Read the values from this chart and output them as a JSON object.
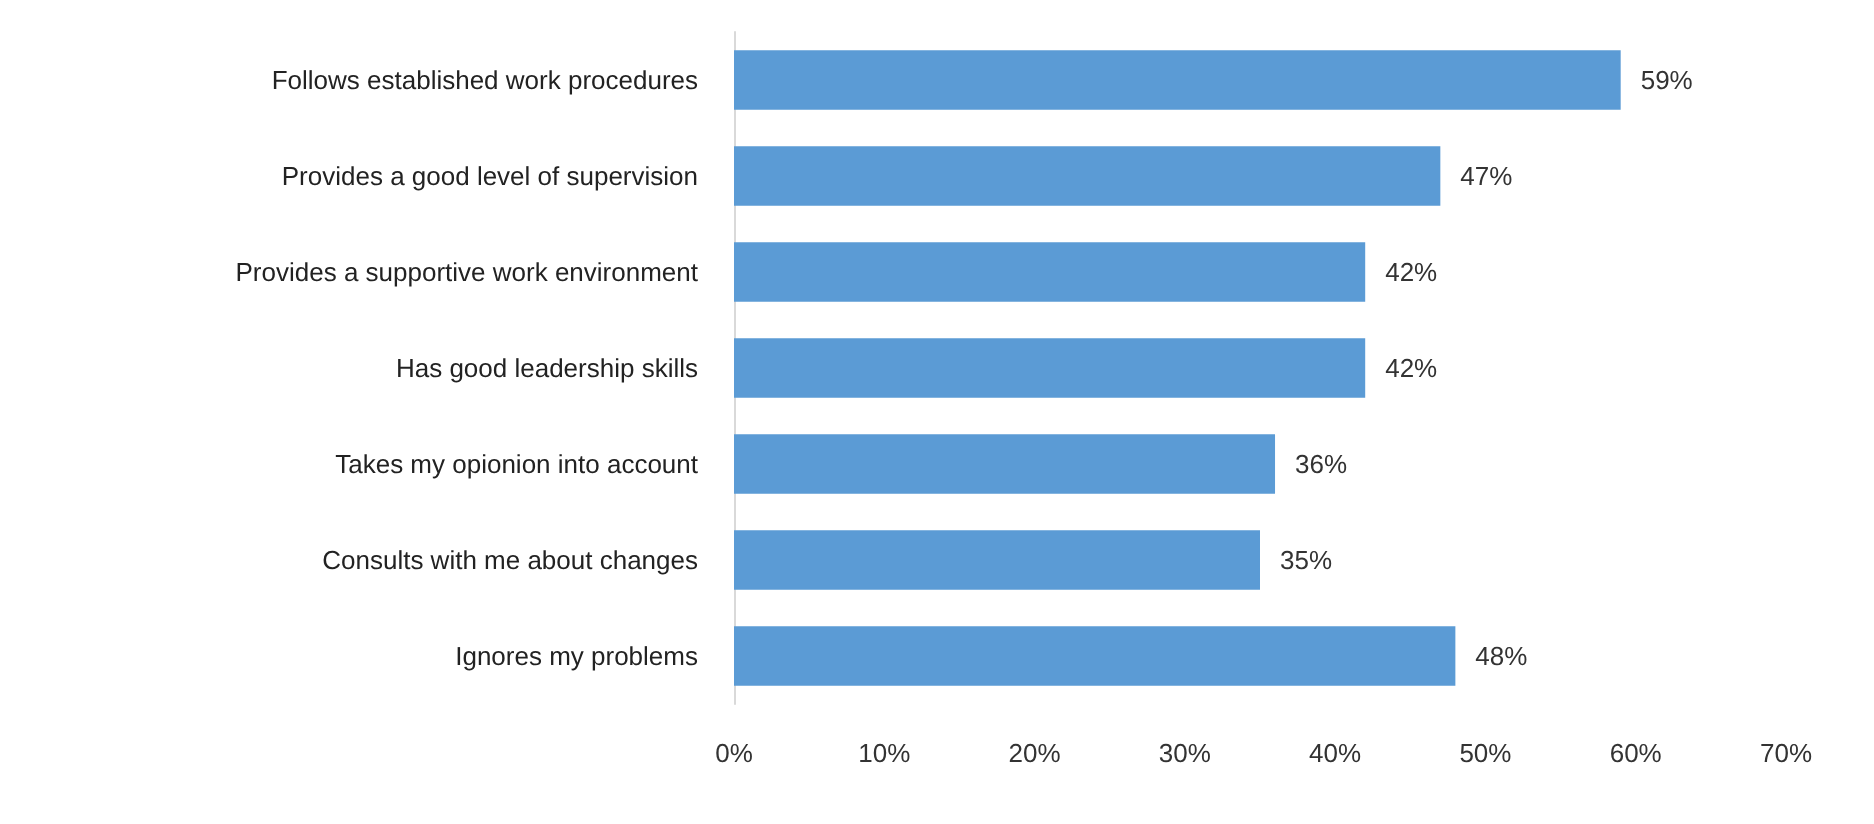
{
  "chart_data": {
    "type": "bar",
    "orientation": "horizontal",
    "categories": [
      "Follows established work procedures",
      "Provides a good level of supervision",
      "Provides a supportive work environment",
      "Has good leadership skills",
      "Takes my opionion into account",
      "Consults with me about changes",
      "Ignores my problems"
    ],
    "values": [
      59,
      47,
      42,
      42,
      36,
      35,
      48
    ],
    "value_labels": [
      "59%",
      "47%",
      "42%",
      "42%",
      "36%",
      "35%",
      "48%"
    ],
    "color": "#5b9bd5",
    "xlim": [
      0,
      70
    ],
    "xticks": [
      {
        "value": 0,
        "label": "0%"
      },
      {
        "value": 10,
        "label": "10%"
      },
      {
        "value": 20,
        "label": "20%"
      },
      {
        "value": 30,
        "label": "30%"
      },
      {
        "value": 40,
        "label": "40%"
      },
      {
        "value": 50,
        "label": "50%"
      },
      {
        "value": 60,
        "label": "60%"
      },
      {
        "value": 70,
        "label": "70%"
      }
    ],
    "grid": false
  }
}
